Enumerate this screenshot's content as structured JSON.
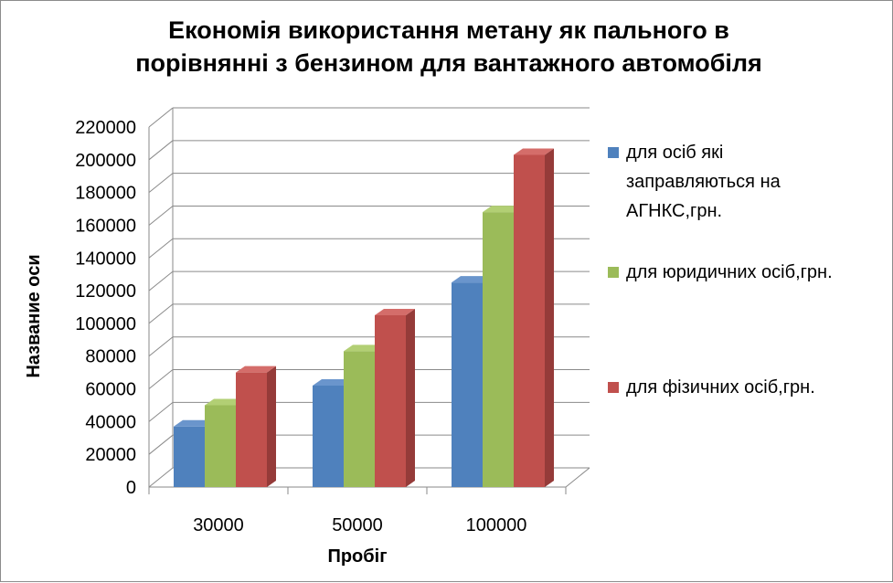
{
  "chart_data": {
    "type": "bar",
    "title_lines": [
      "Економія використання метану як пального в",
      "порівнянні з бензином  для вантажного автомобіля"
    ],
    "xlabel": "Пробіг",
    "ylabel": "Название оси",
    "categories": [
      "30000",
      "50000",
      "100000"
    ],
    "ylim": [
      0,
      220000
    ],
    "yticks": [
      "0",
      "20000",
      "40000",
      "60000",
      "80000",
      "100000",
      "120000",
      "140000",
      "160000",
      "180000",
      "200000",
      "220000"
    ],
    "series": [
      {
        "name_lines": [
          "для осіб які",
          "заправляються на",
          "АГНКС,грн."
        ],
        "values": [
          37000,
          62000,
          125000
        ],
        "color": "#4f81bd",
        "side": "#3a6496",
        "top": "#6a95cc"
      },
      {
        "name_lines": [
          "для юридичних осіб,грн."
        ],
        "values": [
          50000,
          83000,
          168000
        ],
        "color": "#9bbb59",
        "side": "#7a9644",
        "top": "#b2cf74"
      },
      {
        "name_lines": [
          "для фізичних осіб,грн."
        ],
        "values": [
          70000,
          105000,
          203000
        ],
        "color": "#c0504d",
        "side": "#953b39",
        "top": "#d46d6a"
      }
    ],
    "grid": true,
    "legend_position": "right"
  }
}
